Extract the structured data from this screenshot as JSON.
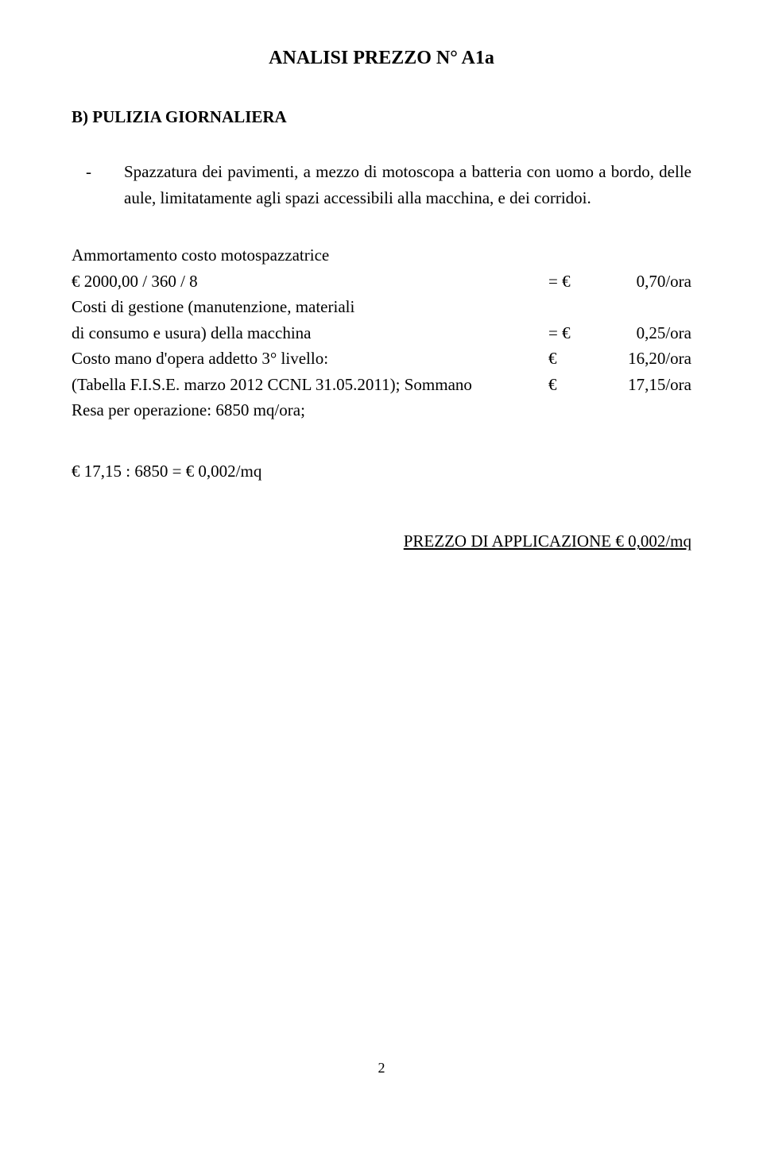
{
  "title": "ANALISI PREZZO N° A1a",
  "section": "B)  PULIZIA GIORNALIERA",
  "bullet_dash": "-",
  "bullet_text": "Spazzatura dei pavimenti, a mezzo di motoscopa a batteria con uomo a bordo, delle aule, limitatamente agli spazi accessibili alla macchina, e dei corridoi.",
  "calc": {
    "line1": "Ammortamento costo motospazzatrice",
    "line2_left": "€     2000,00 / 360 / 8",
    "line2_sym": "= €",
    "line2_val": "0,70/ora",
    "line3": "Costi di gestione (manutenzione, materiali",
    "line4_left": "di consumo e usura) della macchina",
    "line4_sym": "= €",
    "line4_val": "0,25/ora",
    "line5_left": "Costo mano d'opera addetto 3° livello:",
    "line5_sym": "€",
    "line5_val": "16,20/ora",
    "line6_left": "(Tabella F.I.S.E. marzo 2012 CCNL 31.05.2011);   Sommano",
    "line6_sym": "€",
    "line6_val": "17,15/ora",
    "line7": "Resa per operazione: 6850 mq/ora;"
  },
  "division": "€ 17,15 : 6850 =          € 0,002/mq",
  "prezzo": "PREZZO DI APPLICAZIONE € 0,002/mq",
  "page_number": "2"
}
